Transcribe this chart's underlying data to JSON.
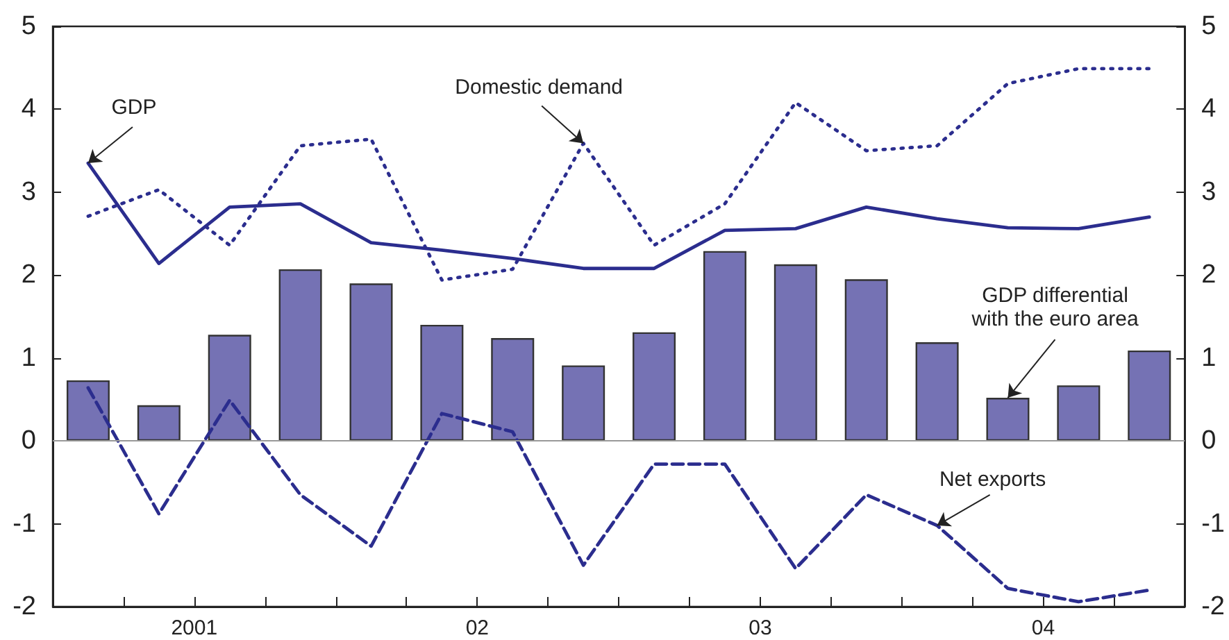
{
  "chart_data": {
    "type": "bar",
    "x": [
      2000.625,
      2000.875,
      2001.125,
      2001.375,
      2001.625,
      2001.875,
      2002.125,
      2002.375,
      2002.625,
      2002.875,
      2003.125,
      2003.375,
      2003.625,
      2003.875,
      2004.125,
      2004.375
    ],
    "xlim": [
      2000.5,
      2004.5
    ],
    "xticks": [
      {
        "value": 2000.75,
        "label": null
      },
      {
        "value": 2001,
        "label": "2001"
      },
      {
        "value": 2001.25,
        "label": null
      },
      {
        "value": 2001.5,
        "label": null
      },
      {
        "value": 2001.75,
        "label": null
      },
      {
        "value": 2002,
        "label": "02"
      },
      {
        "value": 2002.25,
        "label": null
      },
      {
        "value": 2002.5,
        "label": null
      },
      {
        "value": 2002.75,
        "label": null
      },
      {
        "value": 2003,
        "label": "03"
      },
      {
        "value": 2003.25,
        "label": null
      },
      {
        "value": 2003.5,
        "label": null
      },
      {
        "value": 2003.75,
        "label": null
      },
      {
        "value": 2004,
        "label": "04"
      },
      {
        "value": 2004.25,
        "label": null
      }
    ],
    "ylim": [
      -2,
      5
    ],
    "yticks": [
      -2,
      -1,
      0,
      1,
      2,
      3,
      4,
      5
    ],
    "y2lim": [
      -2,
      5
    ],
    "y2ticks": [
      -2,
      -1,
      0,
      1,
      2,
      3,
      4,
      5
    ],
    "series": [
      {
        "color": "#7572b4",
        "values": [
          0.73,
          0.43,
          1.28,
          2.07,
          1.9,
          1.4,
          1.24,
          0.91,
          1.31,
          2.29,
          2.13,
          1.95,
          1.19,
          0.52,
          0.67,
          1.09
        ]
      },
      {
        "type": "line",
        "line_style": "solid",
        "color": "#2b2d8e",
        "values": [
          3.35,
          2.14,
          2.82,
          2.86,
          2.39,
          2.3,
          2.2,
          2.08,
          2.08,
          2.54,
          2.56,
          2.82,
          2.68,
          2.57,
          2.56,
          2.7
        ]
      },
      {
        "type": "line",
        "line_style": "dotted",
        "color": "#2b2d8e",
        "values": [
          2.71,
          3.03,
          2.36,
          3.56,
          3.64,
          1.94,
          2.07,
          3.59,
          2.36,
          2.86,
          4.08,
          3.5,
          3.56,
          4.31,
          4.49,
          4.49
        ]
      },
      {
        "type": "line",
        "line_style": "dashed",
        "color": "#2b2d8e",
        "values": [
          0.64,
          -0.88,
          0.49,
          -0.65,
          -1.27,
          0.33,
          0.11,
          -1.5,
          -0.28,
          -0.28,
          -1.54,
          -0.65,
          -1.02,
          -1.78,
          -1.94,
          -1.8
        ]
      }
    ],
    "ref_lines": [
      {
        "axis": "y",
        "value": 0,
        "color": "#999999"
      }
    ],
    "marker": "none",
    "annotations": [
      {
        "text": "GDP",
        "x": 2000.625,
        "y": 3.35
      },
      {
        "text": "Domestic demand",
        "x": 2002.375,
        "y": 3.59
      },
      {
        "text": "GDP differential\nwith the euro area",
        "x": 2003.875,
        "y": 0.52
      },
      {
        "text": "Net exports",
        "x": 2003.625,
        "y": -1.02
      }
    ]
  }
}
